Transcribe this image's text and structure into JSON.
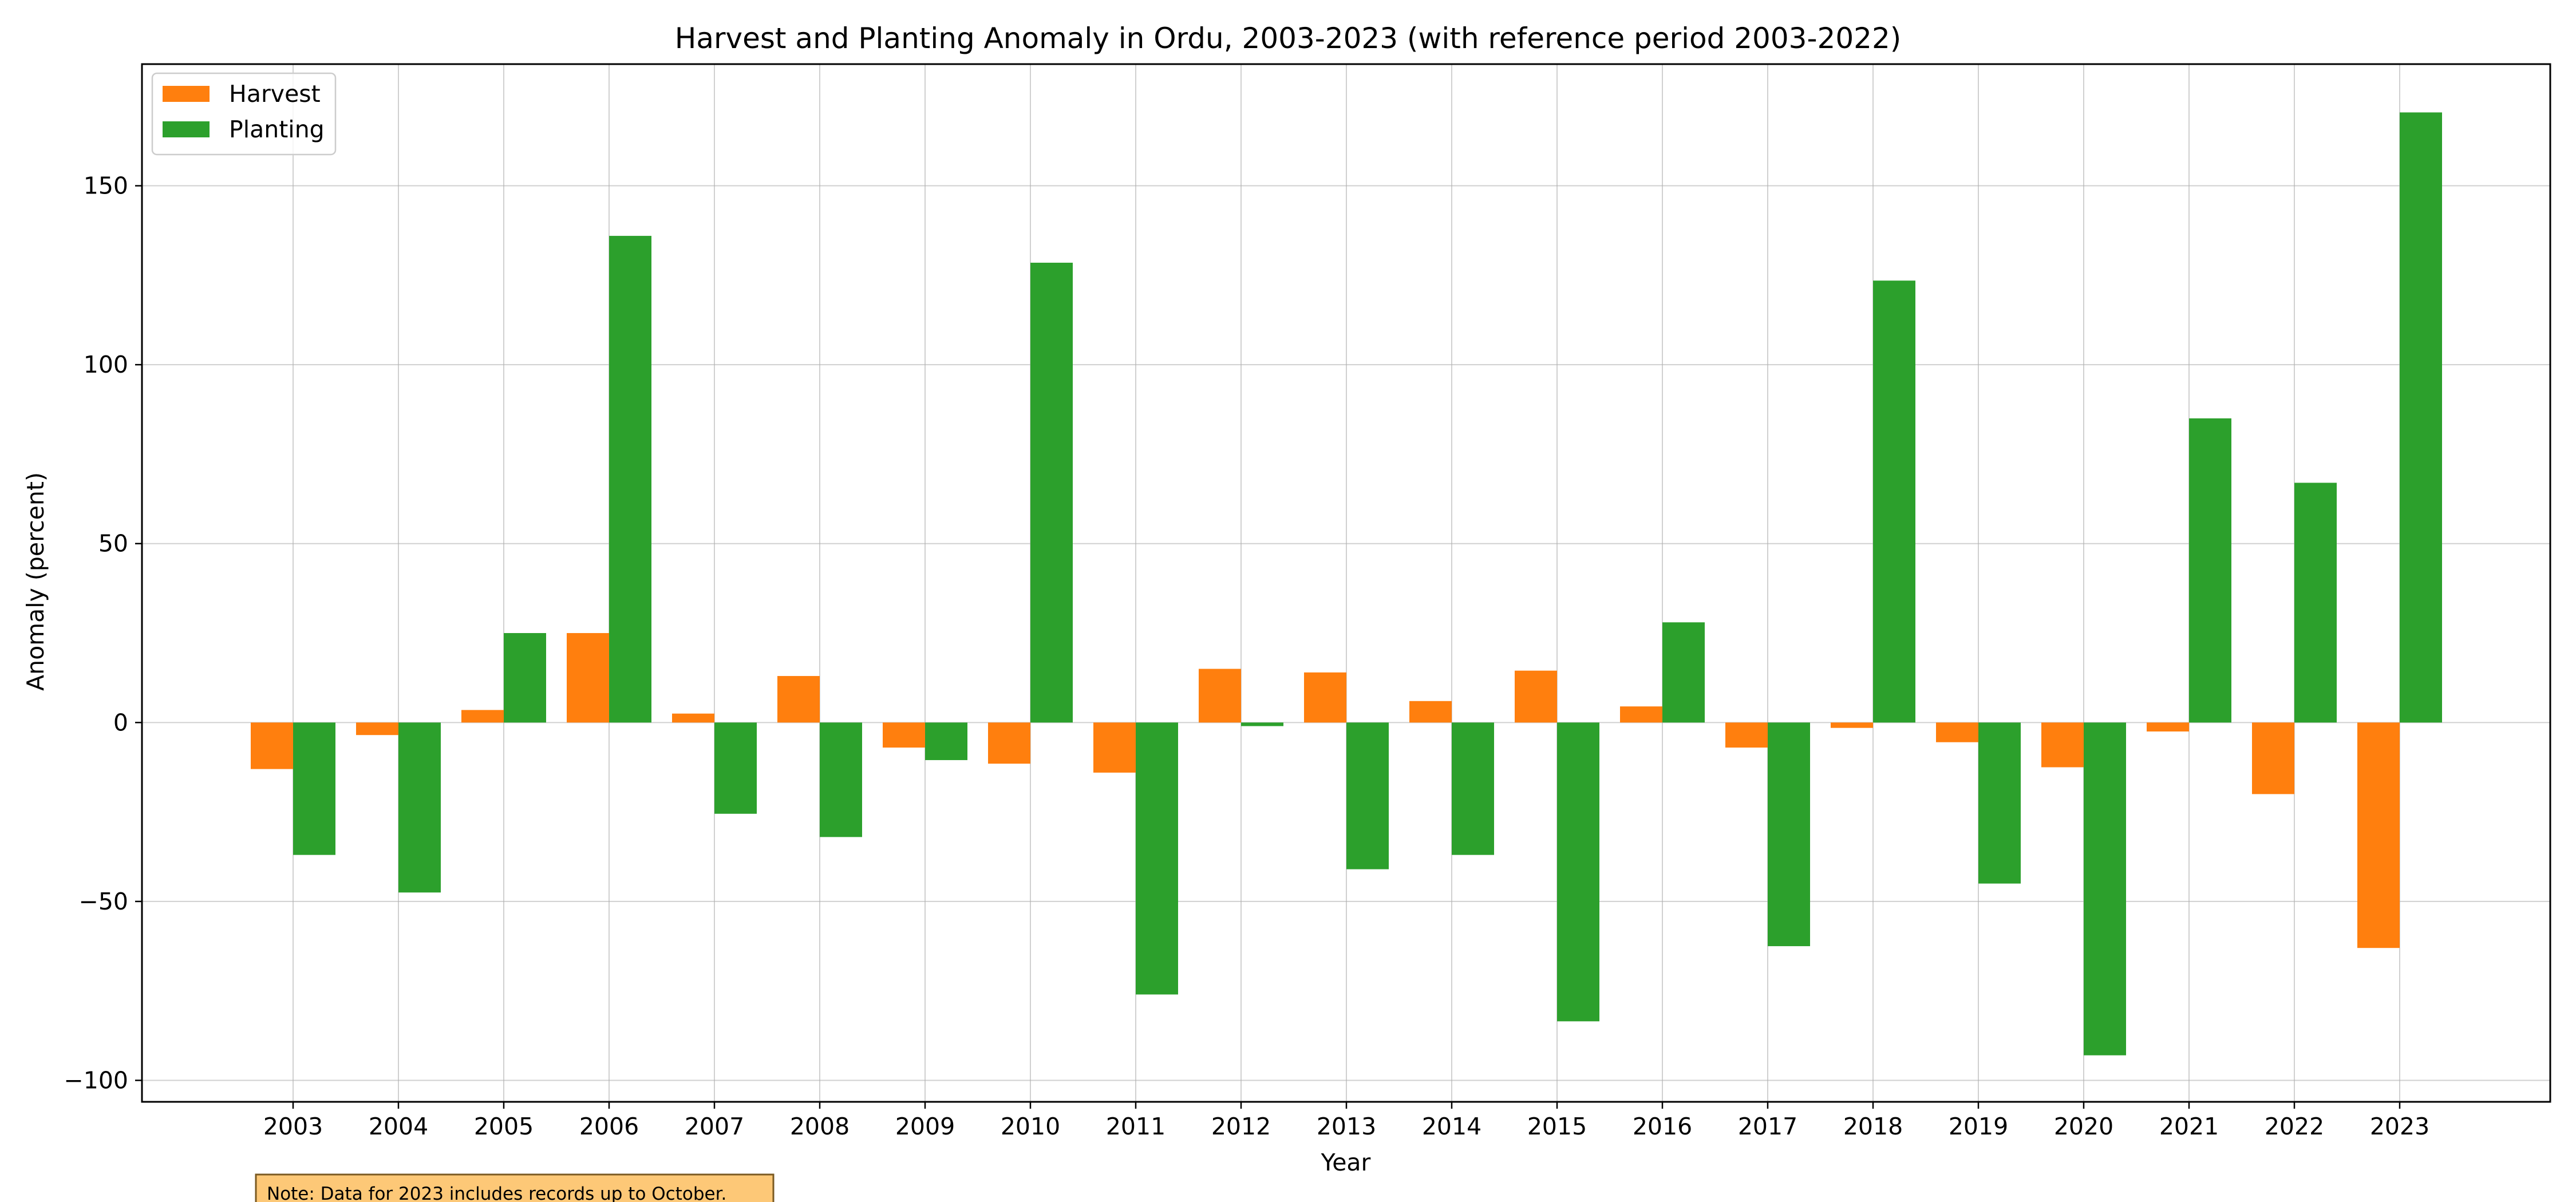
{
  "chart_data": {
    "type": "bar",
    "title": "Harvest and Planting Anomaly in Ordu, 2003-2023 (with reference period 2003-2022)",
    "xlabel": "Year",
    "ylabel": "Anomaly (percent)",
    "ylim": [
      -106,
      184
    ],
    "yticks": [
      -100,
      -50,
      0,
      50,
      100,
      150
    ],
    "grid": true,
    "legend_position": "top-left",
    "categories": [
      "2003",
      "2004",
      "2005",
      "2006",
      "2007",
      "2008",
      "2009",
      "2010",
      "2011",
      "2012",
      "2013",
      "2014",
      "2015",
      "2016",
      "2017",
      "2018",
      "2019",
      "2020",
      "2021",
      "2022",
      "2023"
    ],
    "series": [
      {
        "name": "Harvest",
        "color": "#ff7f0e",
        "values": [
          -13,
          -3.5,
          3.5,
          25,
          2.5,
          13,
          -7,
          -11.5,
          -14,
          15,
          14,
          6,
          14.5,
          4.5,
          -7,
          -1.5,
          -5.5,
          -12.5,
          -2.5,
          -20,
          -63
        ]
      },
      {
        "name": "Planting",
        "color": "#2ca02c",
        "values": [
          -37,
          -47.5,
          25,
          136,
          -25.5,
          -32,
          -10.5,
          128.5,
          -76,
          -1,
          -41,
          -37,
          -83.5,
          28,
          -62.5,
          123.5,
          -45,
          -93,
          85,
          67,
          170.5
        ]
      }
    ],
    "annotation": "Note: Data for 2023 includes records up to October."
  }
}
